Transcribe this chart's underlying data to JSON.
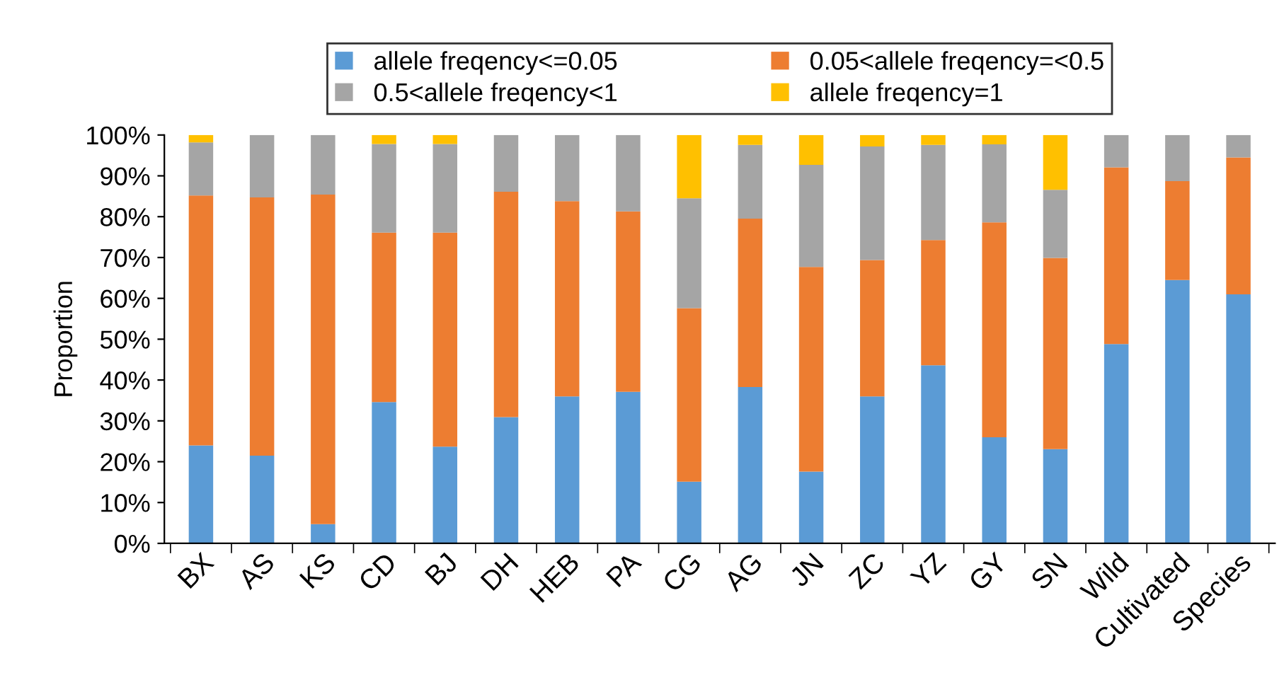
{
  "chart_data": {
    "type": "bar",
    "stacked": true,
    "ylabel": "Proportion",
    "categories": [
      "BX",
      "AS",
      "KS",
      "CD",
      "BJ",
      "DH",
      "HEB",
      "PA",
      "CG",
      "AG",
      "JN",
      "ZC",
      "YZ",
      "GY",
      "SN",
      "Wild",
      "Cultivated",
      "Species"
    ],
    "series": [
      {
        "name": "allele freqency<=0.05",
        "color": "#5b9bd5",
        "values": [
          24.0,
          21.5,
          4.7,
          34.6,
          23.7,
          30.9,
          36.0,
          37.1,
          15.1,
          38.3,
          17.6,
          36.0,
          43.6,
          26.0,
          23.1,
          48.8,
          64.5,
          61.0
        ]
      },
      {
        "name": "0.05<allele freqency=<0.5",
        "color": "#ed7d31",
        "values": [
          61.2,
          63.2,
          80.7,
          41.5,
          52.4,
          55.2,
          47.8,
          44.2,
          42.5,
          41.2,
          50.1,
          33.4,
          30.7,
          52.6,
          46.8,
          43.3,
          24.2,
          33.5
        ]
      },
      {
        "name": "0.5<allele freqency<1",
        "color": "#a5a5a5",
        "values": [
          13.0,
          15.3,
          14.6,
          21.7,
          21.7,
          13.9,
          16.2,
          18.7,
          26.9,
          18.1,
          25.0,
          27.8,
          23.3,
          19.1,
          16.7,
          7.9,
          11.3,
          5.5
        ]
      },
      {
        "name": "allele freqency=1",
        "color": "#ffc000",
        "values": [
          1.8,
          0,
          0,
          2.2,
          2.2,
          0,
          0,
          0,
          15.5,
          2.4,
          7.3,
          2.8,
          2.4,
          2.3,
          13.4,
          0,
          0,
          0
        ]
      }
    ],
    "ylim": [
      0,
      100
    ],
    "yticks": [
      {
        "value": 0,
        "label": "0%"
      },
      {
        "value": 10,
        "label": "10%"
      },
      {
        "value": 20,
        "label": "20%"
      },
      {
        "value": 30,
        "label": "30%"
      },
      {
        "value": 40,
        "label": "40%"
      },
      {
        "value": 50,
        "label": "50%"
      },
      {
        "value": 60,
        "label": "60%"
      },
      {
        "value": 70,
        "label": "70%"
      },
      {
        "value": 80,
        "label": "80%"
      },
      {
        "value": 90,
        "label": "90%"
      },
      {
        "value": 100,
        "label": "100%"
      }
    ],
    "grid": false,
    "legend": "top"
  }
}
